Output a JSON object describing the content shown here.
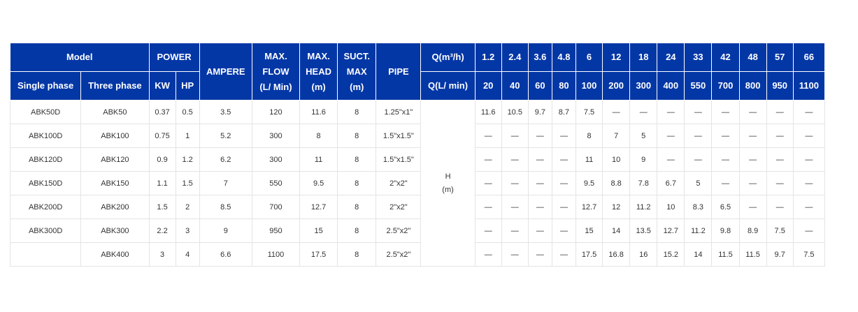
{
  "headers": {
    "model": "Model",
    "power": "POWER",
    "ampere": "AMPERE",
    "max_flow": [
      "MAX.",
      "FLOW",
      "(L/ Min)"
    ],
    "max_head": [
      "MAX.",
      "HEAD",
      "(m)"
    ],
    "suct_max": [
      "SUCT.",
      "MAX",
      "(m)"
    ],
    "pipe": "PIPE",
    "single_phase": "Single phase",
    "three_phase": "Three phase",
    "kw": "KW",
    "hp": "HP",
    "q_m3h_label": "Q(m³/h)",
    "q_lmin_label": "Q(L/ min)",
    "q_m3h": [
      "1.2",
      "2.4",
      "3.6",
      "4.8",
      "6",
      "12",
      "18",
      "24",
      "33",
      "42",
      "48",
      "57",
      "66"
    ],
    "q_lmin": [
      "20",
      "40",
      "60",
      "80",
      "100",
      "200",
      "300",
      "400",
      "550",
      "700",
      "800",
      "950",
      "1100"
    ]
  },
  "h_label": [
    "H",
    "(m)"
  ],
  "rows": [
    {
      "single": "ABK50D",
      "three": "ABK50",
      "kw": "0.37",
      "hp": "0.5",
      "ampere": "3.5",
      "flow": "120",
      "head": "11.6",
      "suct": "8",
      "pipe": "1.25\"x1\"",
      "h": [
        "11.6",
        "10.5",
        "9.7",
        "8.7",
        "7.5",
        "—",
        "—",
        "—",
        "—",
        "—",
        "—",
        "—",
        "—"
      ]
    },
    {
      "single": "ABK100D",
      "three": "ABK100",
      "kw": "0.75",
      "hp": "1",
      "ampere": "5.2",
      "flow": "300",
      "head": "8",
      "suct": "8",
      "pipe": "1.5\"x1.5\"",
      "h": [
        "—",
        "—",
        "—",
        "—",
        "8",
        "7",
        "5",
        "—",
        "—",
        "—",
        "—",
        "—",
        "—"
      ]
    },
    {
      "single": "ABK120D",
      "three": "ABK120",
      "kw": "0.9",
      "hp": "1.2",
      "ampere": "6.2",
      "flow": "300",
      "head": "11",
      "suct": "8",
      "pipe": "1.5\"x1.5\"",
      "h": [
        "—",
        "—",
        "—",
        "—",
        "11",
        "10",
        "9",
        "—",
        "—",
        "—",
        "—",
        "—",
        "—"
      ]
    },
    {
      "single": "ABK150D",
      "three": "ABK150",
      "kw": "1.1",
      "hp": "1.5",
      "ampere": "7",
      "flow": "550",
      "head": "9.5",
      "suct": "8",
      "pipe": "2\"x2\"",
      "h": [
        "—",
        "—",
        "—",
        "—",
        "9.5",
        "8.8",
        "7.8",
        "6.7",
        "5",
        "—",
        "—",
        "—",
        "—"
      ]
    },
    {
      "single": "ABK200D",
      "three": "ABK200",
      "kw": "1.5",
      "hp": "2",
      "ampere": "8.5",
      "flow": "700",
      "head": "12.7",
      "suct": "8",
      "pipe": "2\"x2\"",
      "h": [
        "—",
        "—",
        "—",
        "—",
        "12.7",
        "12",
        "11.2",
        "10",
        "8.3",
        "6.5",
        "—",
        "—",
        "—"
      ]
    },
    {
      "single": "ABK300D",
      "three": "ABK300",
      "kw": "2.2",
      "hp": "3",
      "ampere": "9",
      "flow": "950",
      "head": "15",
      "suct": "8",
      "pipe": "2.5\"x2\"",
      "h": [
        "—",
        "—",
        "—",
        "—",
        "15",
        "14",
        "13.5",
        "12.7",
        "11.2",
        "9.8",
        "8.9",
        "7.5",
        "—"
      ]
    },
    {
      "single": "",
      "three": "ABK400",
      "kw": "3",
      "hp": "4",
      "ampere": "6.6",
      "flow": "1100",
      "head": "17.5",
      "suct": "8",
      "pipe": "2.5\"x2\"",
      "h": [
        "—",
        "—",
        "—",
        "—",
        "17.5",
        "16.8",
        "16",
        "15.2",
        "14",
        "11.5",
        "11.5",
        "9.7",
        "7.5"
      ]
    }
  ],
  "colors": {
    "header_bg": "#0437a6",
    "header_text": "#ffffff",
    "border": "#e4e4e4",
    "body_text": "#333333"
  }
}
